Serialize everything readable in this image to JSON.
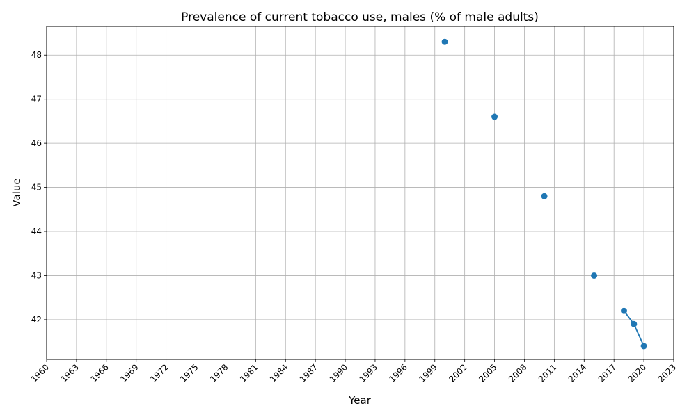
{
  "chart_data": {
    "type": "line",
    "title": "Prevalence of current tobacco use, males (% of male adults)",
    "xlabel": "Year",
    "ylabel": "Value",
    "xlim": [
      1960,
      2023
    ],
    "ylim": [
      41.1,
      48.65
    ],
    "x_ticks": [
      1960,
      1963,
      1966,
      1969,
      1972,
      1975,
      1978,
      1981,
      1984,
      1987,
      1990,
      1993,
      1996,
      1999,
      2002,
      2005,
      2008,
      2011,
      2014,
      2017,
      2020,
      2023
    ],
    "x_tick_labels": [
      "1960",
      "1963",
      "1966",
      "1969",
      "1972",
      "1975",
      "1978",
      "1981",
      "1984",
      "1987",
      "1990",
      "1993",
      "1996",
      "1999",
      "2002",
      "2005",
      "2008",
      "2011",
      "2014",
      "2017",
      "2020",
      "2023"
    ],
    "y_ticks": [
      42,
      43,
      44,
      45,
      46,
      47,
      48
    ],
    "y_tick_labels": [
      "42",
      "43",
      "44",
      "45",
      "46",
      "47",
      "48"
    ],
    "grid": true,
    "series": [
      {
        "color": "#1f77b4",
        "x": [
          2000,
          2005,
          2010,
          2015,
          2018,
          2019,
          2020
        ],
        "y": [
          48.3,
          46.6,
          44.8,
          43.0,
          42.2,
          41.9,
          41.4
        ]
      }
    ]
  }
}
